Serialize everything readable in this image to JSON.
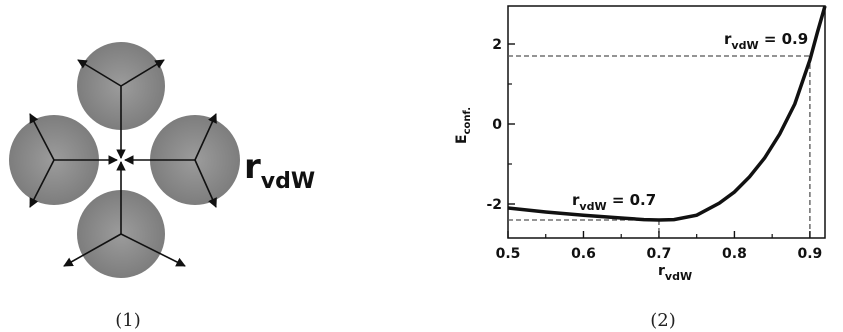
{
  "figure_left": {
    "caption": "(1)",
    "label_main": "r",
    "label_sub": "vdW"
  },
  "figure_right": {
    "caption": "(2)",
    "chart_data": {
      "type": "line",
      "ylabel_main": "E",
      "ylabel_sub": "conf.",
      "xlabel_main": "r",
      "xlabel_sub": "vdW",
      "xlim": [
        0.5,
        0.92
      ],
      "ylim": [
        -2.85,
        2.95
      ],
      "x_ticks": [
        0.5,
        0.6,
        0.7,
        0.8,
        0.9
      ],
      "x_tick_labels": [
        "0.5",
        "0.6",
        "0.7",
        "0.8",
        "0.9"
      ],
      "y_ticks": [
        2,
        0,
        -2
      ],
      "y_tick_labels": [
        "2",
        "0",
        "-2"
      ],
      "series": [
        {
          "x": [
            0.5,
            0.55,
            0.6,
            0.65,
            0.68,
            0.7,
            0.72,
            0.75,
            0.78,
            0.8,
            0.82,
            0.84,
            0.86,
            0.88,
            0.9,
            0.91,
            0.92
          ],
          "y": [
            -2.1,
            -2.2,
            -2.28,
            -2.35,
            -2.39,
            -2.4,
            -2.39,
            -2.28,
            -1.98,
            -1.7,
            -1.32,
            -0.85,
            -0.25,
            0.5,
            1.6,
            2.3,
            3.0
          ]
        }
      ],
      "reference_lines": [
        {
          "y": -2.4,
          "x_end": 0.7
        },
        {
          "y": 1.7,
          "x_end": 0.9
        }
      ],
      "annotations": [
        {
          "main": "r",
          "sub": "vdW",
          "value": " = 0.7"
        },
        {
          "main": "r",
          "sub": "vdW",
          "value": " = 0.9"
        }
      ]
    }
  }
}
